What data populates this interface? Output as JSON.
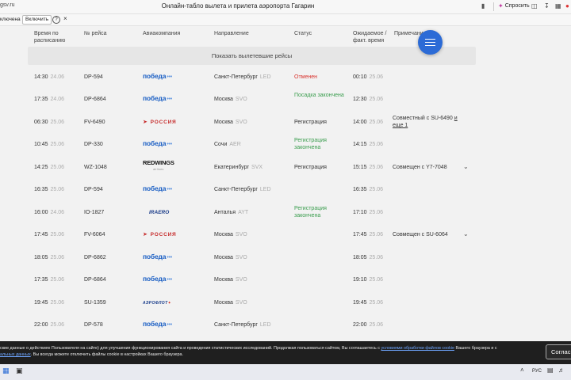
{
  "browser": {
    "url": "gsv.ru",
    "title": "Онлайн-табло вылета и прилета аэропорта Гагарин",
    "ask_label": "Спросить"
  },
  "translate_bar": {
    "status": "ключена",
    "enable_label": "Включить",
    "help": "?",
    "close": "×"
  },
  "table": {
    "headers": {
      "time": "Время по расписанию",
      "flight": "№ рейса",
      "airline": "Авиакомпания",
      "destination": "Направление",
      "status": "Статус",
      "expected": "Ожидаемое / факт. время",
      "note": "Примечание"
    },
    "show_departed": "Показать вылетевшие рейсы",
    "rows": [
      {
        "time": "14:30",
        "date": "24.06",
        "flight": "DP-594",
        "airline": "pobeda",
        "dest": "Санкт-Петербург",
        "code": "LED",
        "status": "Отменен",
        "status_color": "red",
        "etime": "00:10",
        "edate": "25.06",
        "note": ""
      },
      {
        "time": "17:35",
        "date": "24.06",
        "flight": "DP-6864",
        "airline": "pobeda",
        "dest": "Москва",
        "code": "SVO",
        "status": "Посадка закончена",
        "status_color": "green",
        "etime": "12:30",
        "edate": "25.06",
        "note": ""
      },
      {
        "time": "06:30",
        "date": "25.06",
        "flight": "FV-6490",
        "airline": "rossiya",
        "dest": "Москва",
        "code": "SVO",
        "status": "Регистрация",
        "status_color": "default",
        "etime": "14:00",
        "edate": "25.06",
        "note": "Совместный с SU-6490",
        "note_link": "и еще 1"
      },
      {
        "time": "10:45",
        "date": "25.06",
        "flight": "DP-330",
        "airline": "pobeda",
        "dest": "Сочи",
        "code": "AER",
        "status": "Регистрация закончена",
        "status_color": "green",
        "etime": "14:15",
        "edate": "25.06",
        "note": ""
      },
      {
        "time": "14:25",
        "date": "25.06",
        "flight": "WZ-1048",
        "airline": "redwings",
        "dest": "Екатеринбург",
        "code": "SVX",
        "status": "Регистрация",
        "status_color": "default",
        "etime": "15:15",
        "edate": "25.06",
        "note": "Совмещен с Y7-7048",
        "chevron": true
      },
      {
        "time": "16:35",
        "date": "25.06",
        "flight": "DP-594",
        "airline": "pobeda",
        "dest": "Санкт-Петербург",
        "code": "LED",
        "status": "",
        "status_color": "default",
        "etime": "16:35",
        "edate": "25.06",
        "note": ""
      },
      {
        "time": "16:00",
        "date": "24.06",
        "flight": "IO-1827",
        "airline": "iraero",
        "dest": "Анталья",
        "code": "AYT",
        "status": "Регистрация закончена",
        "status_color": "green",
        "etime": "17:10",
        "edate": "25.06",
        "note": ""
      },
      {
        "time": "17:45",
        "date": "25.06",
        "flight": "FV-6064",
        "airline": "rossiya",
        "dest": "Москва",
        "code": "SVO",
        "status": "",
        "status_color": "default",
        "etime": "17:45",
        "edate": "25.06",
        "note": "Совмещен с SU-6064",
        "chevron": true
      },
      {
        "time": "18:05",
        "date": "25.06",
        "flight": "DP-6862",
        "airline": "pobeda",
        "dest": "Москва",
        "code": "SVO",
        "status": "",
        "status_color": "default",
        "etime": "18:05",
        "edate": "25.06",
        "note": ""
      },
      {
        "time": "17:35",
        "date": "25.06",
        "flight": "DP-6864",
        "airline": "pobeda",
        "dest": "Москва",
        "code": "SVO",
        "status": "",
        "status_color": "default",
        "etime": "19:10",
        "edate": "25.06",
        "note": ""
      },
      {
        "time": "19:45",
        "date": "25.06",
        "flight": "SU-1359",
        "airline": "aeroflot",
        "dest": "Москва",
        "code": "SVO",
        "status": "",
        "status_color": "default",
        "etime": "19:45",
        "edate": "25.06",
        "note": ""
      },
      {
        "time": "22:00",
        "date": "25.06",
        "flight": "DP-578",
        "airline": "pobeda",
        "dest": "Санкт-Петербург",
        "code": "LED",
        "status": "",
        "status_color": "default",
        "etime": "22:00",
        "edate": "25.06",
        "note": ""
      }
    ]
  },
  "logos": {
    "pobeda": "победа",
    "pobeda_dots": "•••",
    "rossiya": "РОССИЯ",
    "redwings": "REDWINGS",
    "redwings_sub": "airlines",
    "iraero": "IRAERO",
    "aeroflot": "АЭРОФЛОТ"
  },
  "cookie": {
    "text_1": "ские данные о действиях Пользователя на сайте) для улучшения функционирования сайта и проведения статистических исследований. Продолжая пользоваться сайтом, Вы соглашаетесь с",
    "link_1": "условиями обработки файлов cookie",
    "text_2": "Вашего браузера и с",
    "link_2": "альных данных",
    "text_3": ". Вы всегда можете отключить файлы cookie в настройках Вашего браузера.",
    "accept_label": "Соглас"
  },
  "taskbar": {
    "lang": "РУС"
  }
}
